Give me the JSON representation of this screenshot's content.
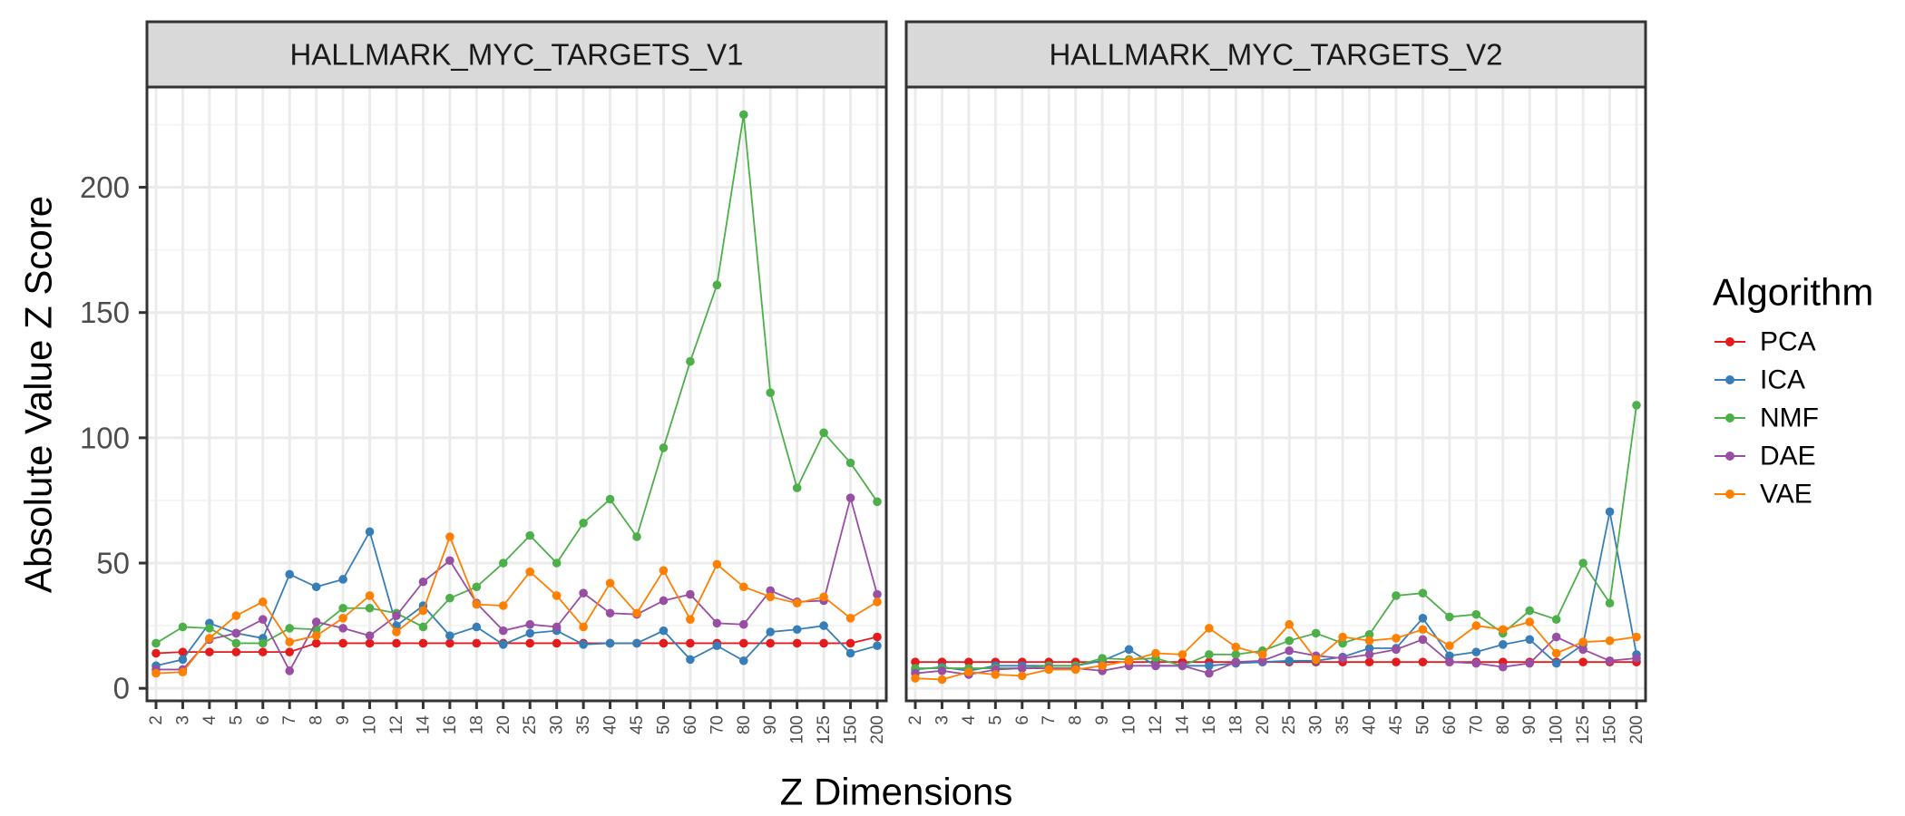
{
  "chart_data": {
    "type": "line",
    "xlabel": "Z Dimensions",
    "ylabel": "Absolute Value Z Score",
    "ylim": [
      -5,
      240
    ],
    "yticks": [
      0,
      50,
      100,
      150,
      200
    ],
    "grid": true,
    "categories": [
      "2",
      "3",
      "4",
      "5",
      "6",
      "7",
      "8",
      "9",
      "10",
      "12",
      "14",
      "16",
      "18",
      "20",
      "25",
      "30",
      "35",
      "40",
      "45",
      "50",
      "60",
      "70",
      "80",
      "90",
      "100",
      "125",
      "150",
      "200"
    ],
    "legend": {
      "title": "Algorithm",
      "position": "right",
      "entries": [
        "PCA",
        "ICA",
        "NMF",
        "DAE",
        "VAE"
      ]
    },
    "colors": {
      "PCA": "#e41a1c",
      "ICA": "#377eb8",
      "NMF": "#4daf4a",
      "DAE": "#984ea3",
      "VAE": "#ff7f00"
    },
    "panels": [
      {
        "title": "HALLMARK_MYC_TARGETS_V1",
        "series": [
          {
            "name": "PCA",
            "values": [
              14,
              14.5,
              14.5,
              14.5,
              14.5,
              14.5,
              18,
              18,
              18,
              18,
              18,
              18,
              18,
              18,
              18,
              18,
              18,
              18,
              18,
              18,
              18,
              18,
              18,
              18,
              18,
              18,
              18,
              20.5
            ]
          },
          {
            "name": "ICA",
            "values": [
              9,
              11.5,
              26,
              22,
              20,
              45.5,
              40.5,
              43.5,
              62.5,
              25,
              33,
              21,
              24.5,
              17.5,
              22,
              23,
              17.5,
              18,
              18,
              23,
              11.5,
              17,
              11,
              22.5,
              23.5,
              25,
              14,
              17
            ]
          },
          {
            "name": "NMF",
            "values": [
              18,
              24.5,
              24,
              18,
              18,
              24,
              23.5,
              32,
              32,
              30,
              24.5,
              36,
              40.5,
              50,
              61,
              50,
              66,
              75.5,
              60.5,
              96,
              130.5,
              161,
              229,
              118,
              80,
              102,
              90,
              74.5
            ]
          },
          {
            "name": "DAE",
            "values": [
              7.5,
              7.5,
              19.5,
              22,
              27.5,
              7,
              26.5,
              24,
              21,
              29,
              42.5,
              51,
              34,
              23,
              25.5,
              24.5,
              38,
              30,
              29.5,
              35,
              37.5,
              26,
              25.5,
              39,
              34.5,
              35,
              76,
              37.5
            ]
          },
          {
            "name": "VAE",
            "values": [
              6,
              6.5,
              20,
              29,
              34.5,
              18.5,
              21,
              28,
              37,
              22.5,
              31,
              60.5,
              33.5,
              33,
              46.5,
              37,
              24.5,
              42,
              30,
              47,
              27.5,
              49.5,
              40.5,
              36.5,
              34,
              36.5,
              28,
              34.5
            ]
          }
        ]
      },
      {
        "title": "HALLMARK_MYC_TARGETS_V2",
        "series": [
          {
            "name": "PCA",
            "values": [
              10.5,
              10.5,
              10.5,
              10.5,
              10.5,
              10.5,
              10.5,
              10.5,
              10.5,
              10.5,
              10.5,
              10.5,
              10.5,
              10.5,
              10.5,
              10.5,
              10.5,
              10.5,
              10.5,
              10.5,
              10.5,
              10.5,
              10.5,
              10.5,
              10.5,
              10.5,
              10.5,
              10.5
            ]
          },
          {
            "name": "ICA",
            "values": [
              7.5,
              8.5,
              7,
              9,
              9,
              9,
              9,
              11,
              15.5,
              9,
              9,
              9,
              10,
              10.5,
              11,
              11,
              12.5,
              16,
              16,
              28,
              13,
              14.5,
              17.5,
              19.5,
              10,
              17.5,
              70.5,
              13.5
            ]
          },
          {
            "name": "NMF",
            "values": [
              8,
              8,
              8,
              8,
              8,
              9,
              9,
              12,
              11.5,
              12,
              9,
              13.5,
              13.5,
              15,
              19,
              22,
              18,
              21.5,
              37,
              38,
              28.5,
              29.5,
              22,
              31,
              27.5,
              50,
              34,
              113
            ]
          },
          {
            "name": "DAE",
            "values": [
              6,
              7,
              5.5,
              7.5,
              8,
              8,
              8,
              7,
              9,
              9,
              9,
              6,
              10.5,
              11,
              15,
              13,
              12,
              13.5,
              15.5,
              19.5,
              10.5,
              10,
              8.5,
              10,
              20.5,
              15.5,
              11,
              12
            ]
          },
          {
            "name": "VAE",
            "values": [
              4,
              3.5,
              6.5,
              5.5,
              5,
              7.5,
              7.5,
              9,
              11,
              14,
              13.5,
              24,
              16.5,
              13.5,
              25.5,
              11.5,
              20.5,
              19,
              20,
              23.5,
              17,
              25,
              23.5,
              26.5,
              14,
              18.5,
              19,
              20.5
            ]
          }
        ]
      }
    ]
  }
}
